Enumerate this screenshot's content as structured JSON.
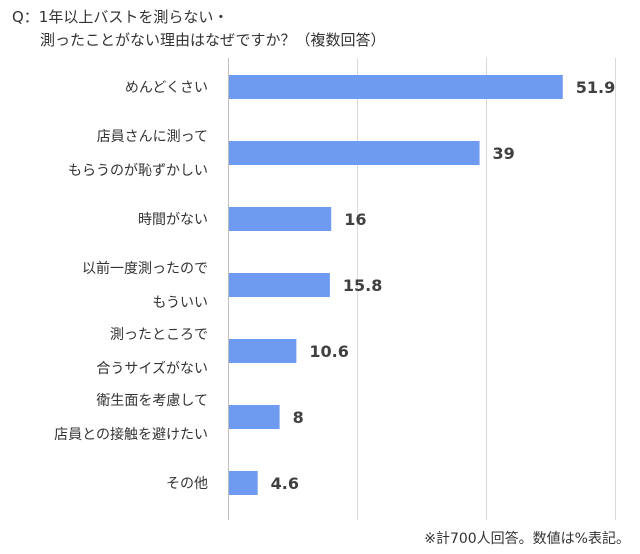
{
  "title": {
    "line1": "Q：1年以上バストを測らない・",
    "line2": "測ったことがない理由はなぜですか？（複数回答）"
  },
  "footnote": "※計700人回答。数値は%表記。",
  "colors": {
    "bar": "#6e9bef",
    "grid": "#d9d9d9"
  },
  "chart_data": {
    "type": "bar",
    "orientation": "horizontal",
    "categories": [
      [
        "めんどくさい"
      ],
      [
        "店員さんに測って",
        "もらうのが恥ずかしい"
      ],
      [
        "時間がない"
      ],
      [
        "以前一度測ったので",
        "もういい"
      ],
      [
        "測ったところで",
        "合うサイズがない"
      ],
      [
        "衛生面を考慮して",
        "店員との接触を避けたい"
      ],
      [
        "その他"
      ]
    ],
    "values": [
      51.9,
      39,
      16,
      15.8,
      10.6,
      8,
      4.6
    ],
    "value_labels": [
      "51.9",
      "39",
      "16",
      "15.8",
      "10.6",
      "8",
      "4.6"
    ],
    "xlim": [
      0,
      60
    ],
    "grid": true
  }
}
